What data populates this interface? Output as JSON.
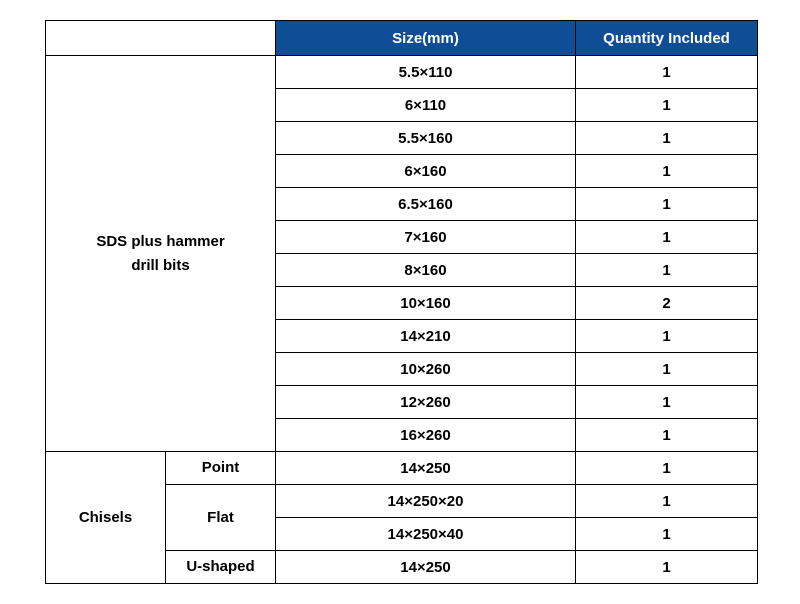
{
  "table": {
    "header_bg": "#0f4e96",
    "header_fg": "#ffffff",
    "border_color": "#000000",
    "columns": {
      "size": "Size(mm)",
      "qty": "Quantity Included"
    },
    "groups": [
      {
        "category": "SDS plus hammer\ndrill bits",
        "subgroups": [
          {
            "label": null,
            "rows": [
              {
                "size": "5.5×110",
                "qty": "1"
              },
              {
                "size": "6×110",
                "qty": "1"
              },
              {
                "size": "5.5×160",
                "qty": "1"
              },
              {
                "size": "6×160",
                "qty": "1"
              },
              {
                "size": "6.5×160",
                "qty": "1"
              },
              {
                "size": "7×160",
                "qty": "1"
              },
              {
                "size": "8×160",
                "qty": "1"
              },
              {
                "size": "10×160",
                "qty": "2"
              },
              {
                "size": "14×210",
                "qty": "1"
              },
              {
                "size": "10×260",
                "qty": "1"
              },
              {
                "size": "12×260",
                "qty": "1"
              },
              {
                "size": "16×260",
                "qty": "1"
              }
            ]
          }
        ]
      },
      {
        "category": "Chisels",
        "subgroups": [
          {
            "label": "Point",
            "rows": [
              {
                "size": "14×250",
                "qty": "1"
              }
            ]
          },
          {
            "label": "Flat",
            "rows": [
              {
                "size": "14×250×20",
                "qty": "1"
              },
              {
                "size": "14×250×40",
                "qty": "1"
              }
            ]
          },
          {
            "label": "U-shaped",
            "rows": [
              {
                "size": "14×250",
                "qty": "1"
              }
            ]
          }
        ]
      }
    ]
  }
}
